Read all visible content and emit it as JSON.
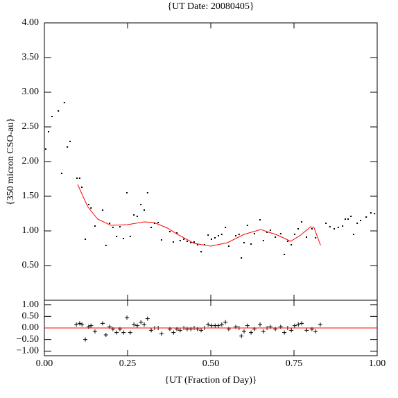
{
  "chart_data": [
    {
      "type": "scatter",
      "title": "{UT Date: 20080405}",
      "y_label": "{350 micron CSO-au}",
      "xlim": [
        0,
        1
      ],
      "ylim": [
        0,
        4
      ],
      "xticks": [
        0,
        0.25,
        0.5,
        0.75,
        1
      ],
      "yticks": [
        {
          "value": 0.5,
          "label": "0.50"
        },
        {
          "value": 1,
          "label": "1.00"
        },
        {
          "value": 1.5,
          "label": "1.50"
        },
        {
          "value": 2,
          "label": "2.00"
        },
        {
          "value": 2.5,
          "label": "2.50"
        },
        {
          "value": 3,
          "label": "3.00"
        },
        {
          "value": 3.5,
          "label": "3.50"
        },
        {
          "value": 4,
          "label": "4.00"
        }
      ],
      "series": [
        {
          "marker": "dot",
          "color": "#000000",
          "x": [
            0.004,
            0.0125,
            0.023,
            0.042,
            0.052,
            0.06,
            0.069,
            0.077,
            0.098,
            0.106,
            0.1125,
            0.123,
            0.133,
            0.14,
            0.152,
            0.175,
            0.185,
            0.196,
            0.206,
            0.217,
            0.227,
            0.2375,
            0.248,
            0.258,
            0.269,
            0.279,
            0.29,
            0.3,
            0.31,
            0.321,
            0.331,
            0.342,
            0.352,
            0.377,
            0.3875,
            0.398,
            0.408,
            0.419,
            0.429,
            0.44,
            0.45,
            0.46,
            0.471,
            0.481,
            0.492,
            0.502,
            0.5125,
            0.523,
            0.533,
            0.544,
            0.554,
            0.575,
            0.585,
            0.592,
            0.6,
            0.61,
            0.621,
            0.631,
            0.648,
            0.658,
            0.669,
            0.679,
            0.694,
            0.71,
            0.721,
            0.731,
            0.742,
            0.752,
            0.7625,
            0.773,
            0.7875,
            0.804,
            0.815,
            0.846,
            0.858,
            0.871,
            0.883,
            0.896,
            0.904,
            0.9125,
            0.921,
            0.929,
            0.94,
            0.95,
            0.967,
            0.981,
            0.992
          ],
          "values": [
            2.18,
            2.43,
            2.65,
            2.73,
            1.83,
            2.85,
            2.21,
            2.29,
            1.76,
            1.76,
            1.63,
            0.88,
            1.38,
            1.33,
            1.07,
            1.3,
            0.79,
            1.11,
            1.05,
            0.92,
            1.06,
            0.89,
            1.55,
            0.92,
            1.23,
            1.21,
            1.38,
            1.3,
            1.55,
            1.05,
            1.11,
            1.12,
            0.87,
            0.99,
            0.84,
            0.97,
            0.86,
            0.88,
            0.85,
            0.83,
            0.84,
            0.8,
            0.7,
            0.8,
            0.94,
            0.88,
            0.9,
            0.93,
            0.95,
            1.05,
            0.78,
            0.93,
            0.95,
            0.61,
            0.83,
            1.08,
            0.81,
            0.96,
            1.16,
            0.86,
            0.98,
            1.01,
            0.91,
            0.96,
            0.66,
            0.85,
            0.8,
            0.95,
            1.03,
            1.13,
            0.91,
            1.03,
            0.9,
            1.11,
            1.06,
            1.03,
            1.05,
            1.07,
            1.17,
            1.17,
            1.21,
            0.95,
            1.11,
            1.15,
            1.2,
            1.26,
            1.25
          ]
        },
        {
          "marker": "line",
          "color": "#ff0000",
          "x": [
            0.1,
            0.13,
            0.16,
            0.2,
            0.25,
            0.3,
            0.33,
            0.37,
            0.4,
            0.45,
            0.5,
            0.55,
            0.6,
            0.65,
            0.7,
            0.74,
            0.77,
            0.8,
            0.81,
            0.83
          ],
          "values": [
            1.67,
            1.35,
            1.17,
            1.08,
            1.09,
            1.13,
            1.12,
            1.04,
            0.95,
            0.82,
            0.78,
            0.83,
            0.95,
            1.02,
            0.94,
            0.85,
            0.94,
            1.06,
            1.05,
            0.79
          ]
        }
      ]
    },
    {
      "type": "scatter",
      "x_label": "{UT (Fraction of Day)}",
      "xlim": [
        0,
        1
      ],
      "ylim": [
        -1.2,
        1.2
      ],
      "xticks": [
        {
          "value": 0,
          "label": "0.00"
        },
        {
          "value": 0.25,
          "label": "0.25"
        },
        {
          "value": 0.5,
          "label": "0.50"
        },
        {
          "value": 0.75,
          "label": "0.75"
        },
        {
          "value": 1,
          "label": "1.00"
        }
      ],
      "yticks": [
        {
          "value": -1,
          "label": "−1.00"
        },
        {
          "value": -0.5,
          "label": "−0.50"
        },
        {
          "value": 0,
          "label": "0.00"
        },
        {
          "value": 0.5,
          "label": "0.50"
        },
        {
          "value": 1,
          "label": "1.00"
        }
      ],
      "series": [
        {
          "marker": "plus",
          "color": "#000000",
          "x": [
            0.096,
            0.106,
            0.113,
            0.123,
            0.133,
            0.14,
            0.152,
            0.175,
            0.185,
            0.196,
            0.206,
            0.217,
            0.227,
            0.238,
            0.248,
            0.258,
            0.269,
            0.279,
            0.29,
            0.3,
            0.31,
            0.321,
            0.331,
            0.342,
            0.352,
            0.377,
            0.388,
            0.398,
            0.408,
            0.419,
            0.429,
            0.44,
            0.45,
            0.46,
            0.471,
            0.481,
            0.492,
            0.502,
            0.513,
            0.523,
            0.533,
            0.544,
            0.554,
            0.575,
            0.585,
            0.592,
            0.6,
            0.61,
            0.621,
            0.631,
            0.648,
            0.658,
            0.669,
            0.679,
            0.694,
            0.71,
            0.721,
            0.731,
            0.742,
            0.752,
            0.763,
            0.773,
            0.788,
            0.804,
            0.815,
            0.829
          ],
          "values": [
            0.15,
            0.2,
            0.15,
            -0.5,
            0.05,
            0.1,
            -0.15,
            0.2,
            -0.3,
            0.05,
            -0.05,
            -0.2,
            -0.05,
            -0.2,
            0.45,
            -0.2,
            0.15,
            0.1,
            0.25,
            0.15,
            0.4,
            -0.1,
            0,
            0,
            -0.25,
            -0.05,
            -0.2,
            -0.05,
            -0.1,
            0,
            -0.05,
            -0.05,
            0,
            -0.05,
            -0.1,
            0,
            0.15,
            0.1,
            0.1,
            0.1,
            0.15,
            0.25,
            -0.05,
            0.05,
            0,
            -0.35,
            -0.15,
            0.1,
            -0.2,
            -0.05,
            0.15,
            -0.15,
            0,
            0.05,
            -0.05,
            0.05,
            -0.2,
            0,
            -0.1,
            0.1,
            0.15,
            0.2,
            -0.1,
            -0.05,
            -0.15,
            0.15
          ]
        },
        {
          "marker": "line",
          "color": "#ff0000",
          "x": [
            0,
            1
          ],
          "values": [
            0,
            0
          ]
        }
      ]
    }
  ]
}
